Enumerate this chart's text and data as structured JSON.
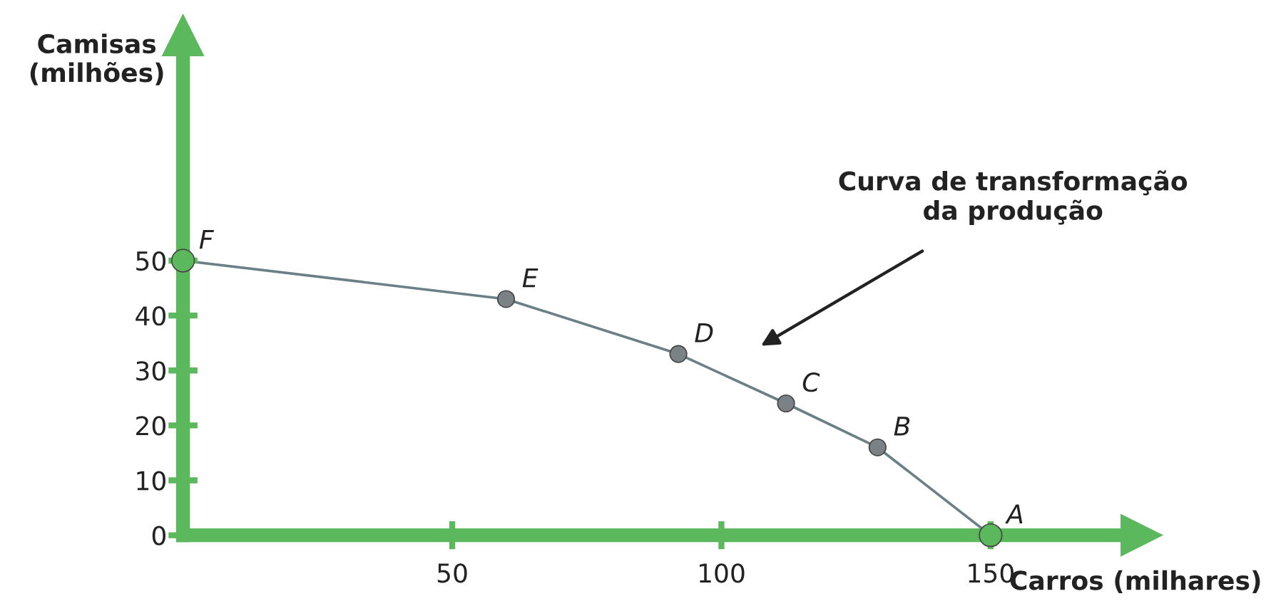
{
  "chart_data": {
    "type": "line",
    "xlabel": "Carros (milhares)",
    "ylabel": "Camisas\n(milhões)",
    "xlim": [
      0,
      178
    ],
    "ylim": [
      0,
      91
    ],
    "xticks": [
      50,
      100,
      150
    ],
    "yticks": [
      0,
      10,
      20,
      30,
      40,
      50
    ],
    "grid": false,
    "legend": false,
    "series": [
      {
        "color": "#6b7f86",
        "x": [
          0,
          60,
          92,
          112,
          129,
          150
        ],
        "values": [
          50,
          43,
          33,
          24,
          16,
          0
        ]
      },
      {
        "type": "scatter",
        "x": [
          0,
          60,
          92,
          112,
          129,
          150
        ],
        "values": [
          50,
          43,
          33,
          24,
          16,
          0
        ],
        "colors": [
          "#5cb85c",
          "#7a8286",
          "#7a8286",
          "#7a8286",
          "#7a8286",
          "#5cb85c"
        ],
        "marker": "circle",
        "sizes": [
          1,
          0.55,
          0.55,
          0.55,
          0.55,
          1
        ]
      }
    ],
    "annotations": [
      {
        "text": "F",
        "x": 0,
        "y": 50
      },
      {
        "text": "E",
        "x": 60,
        "y": 43
      },
      {
        "text": "D",
        "x": 92,
        "y": 33
      },
      {
        "text": "C",
        "x": 112,
        "y": 24
      },
      {
        "text": "B",
        "x": 129,
        "y": 16
      },
      {
        "text": "A",
        "x": 150,
        "y": 0
      },
      "Curva de transformação\nda produção"
    ]
  }
}
